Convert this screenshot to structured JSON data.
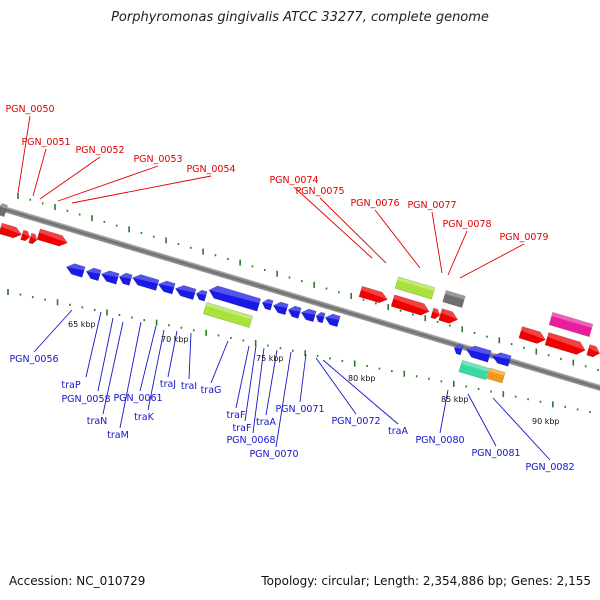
{
  "title": "Porphyromonas gingivalis ATCC 33277, complete genome",
  "footer": {
    "accession": "Accession: NC_010729",
    "summary": "Topology: circular; Length: 2,354,886 bp; Genes: 2,155"
  },
  "scale_labels": [
    "65 kbp",
    "70 kbp",
    "75 kbp",
    "80 kbp",
    "85 kbp",
    "90 kbp"
  ],
  "labels_top": [
    "PGN_0050",
    "PGN_0051",
    "PGN_0052",
    "PGN_0053",
    "PGN_0054",
    "PGN_0074",
    "PGN_0075",
    "PGN_0076",
    "PGN_0077",
    "PGN_0078",
    "PGN_0079"
  ],
  "labels_bottom": [
    "PGN_0056",
    "traP",
    "PGN_0058",
    "traN",
    "traM",
    "PGN_0061",
    "traK",
    "traJ",
    "traI",
    "traG",
    "traF",
    "traF",
    "traA",
    "PGN_0068",
    "PGN_0070",
    "PGN_0071",
    "PGN_0072",
    "traA",
    "PGN_0080",
    "PGN_0081",
    "PGN_0082"
  ],
  "colors": {
    "forward_gene": "#f00000",
    "reverse_gene": "#1a1ae6",
    "backbone": "#8c8c8c",
    "label_forward": "#e00000",
    "label_reverse": "#1515c8",
    "tick_green": "#2a7a2a",
    "green_feature": "#a8e23a",
    "magenta_feature": "#e81e9a",
    "gray_feature": "#6e6e6e",
    "teal_feature": "#3ad9a0",
    "orange_feature": "#f29a1a"
  }
}
